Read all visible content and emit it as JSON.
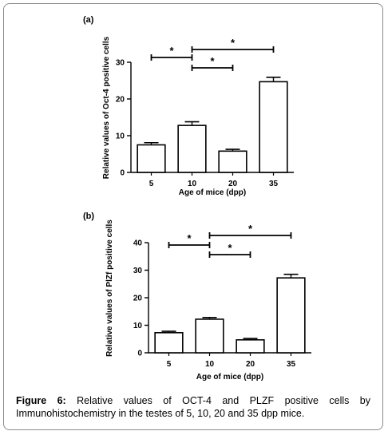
{
  "caption": {
    "label": "Figure 6:",
    "text": "Relative values of OCT-4 and PLZF positive cells by Immunohistochemistry in the testes of 5, 10, 20 and 35 dpp mice."
  },
  "chart_data": [
    {
      "type": "bar",
      "panel": "(a)",
      "categories": [
        "5",
        "10",
        "20",
        "35"
      ],
      "values": [
        7.5,
        12.8,
        5.8,
        24.7
      ],
      "errors": [
        0.6,
        1.0,
        0.5,
        1.2
      ],
      "xlabel": "Age of mice (dpp)",
      "ylabel": "Relative values of Oct-4 positive cells",
      "ylim": [
        0,
        30
      ],
      "yticks": [
        0,
        10,
        20,
        30
      ],
      "significance": [
        {
          "from": "5",
          "to": "10",
          "label": "*"
        },
        {
          "from": "10",
          "to": "20",
          "label": "*"
        },
        {
          "from": "10",
          "to": "35",
          "label": "*"
        }
      ]
    },
    {
      "type": "bar",
      "panel": "(b)",
      "categories": [
        "5",
        "10",
        "20",
        "35"
      ],
      "values": [
        7.3,
        12.2,
        4.7,
        27.2
      ],
      "errors": [
        0.5,
        0.6,
        0.5,
        1.3
      ],
      "xlabel": "Age of mice (dpp)",
      "ylabel": "Relative values of PlZf positive cells",
      "ylim": [
        0,
        40
      ],
      "yticks": [
        0,
        10,
        20,
        30,
        40
      ],
      "significance": [
        {
          "from": "5",
          "to": "10",
          "label": "*"
        },
        {
          "from": "10",
          "to": "20",
          "label": "*"
        },
        {
          "from": "10",
          "to": "35",
          "label": "*"
        }
      ]
    }
  ]
}
